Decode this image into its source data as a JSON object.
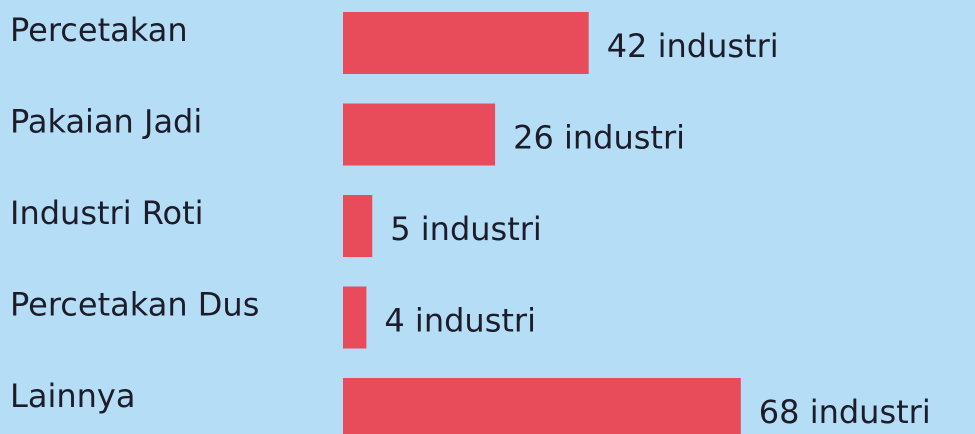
{
  "chart_data": {
    "type": "barh",
    "categories": [
      "Percetakan",
      "Pakaian Jadi",
      "Industri Roti",
      "Percetakan Dus",
      "Lainnya"
    ],
    "values": [
      42,
      26,
      5,
      4,
      68
    ],
    "value_labels": [
      "42 industri",
      "26 industri",
      "5 industri",
      "4 industri",
      "68 industri"
    ],
    "color": "#e84c5b"
  }
}
